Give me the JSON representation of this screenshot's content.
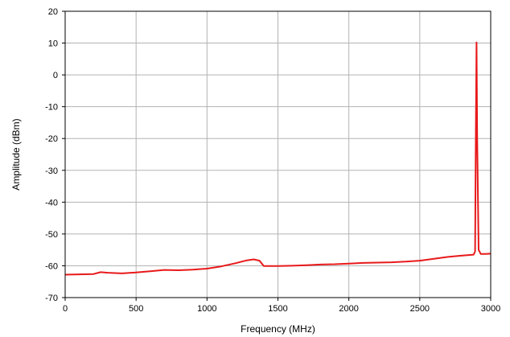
{
  "chart_data": {
    "type": "line",
    "title": "",
    "xlabel": "Frequency (MHz)",
    "ylabel": "Amplitude (dBm)",
    "xlim": [
      0,
      3000
    ],
    "ylim": [
      -70,
      20
    ],
    "xticks": [
      0,
      500,
      1000,
      1500,
      2000,
      2500,
      3000
    ],
    "yticks": [
      -70,
      -60,
      -50,
      -40,
      -30,
      -20,
      -10,
      0,
      10,
      20
    ],
    "grid": true,
    "legend": "none",
    "line_color": "#e8191a",
    "series": [
      {
        "x": [
          0,
          100,
          200,
          250,
          300,
          400,
          500,
          600,
          700,
          800,
          900,
          1000,
          1100,
          1200,
          1280,
          1330,
          1370,
          1390,
          1400,
          1500,
          1600,
          1700,
          1800,
          1900,
          2000,
          2100,
          2200,
          2300,
          2400,
          2500,
          2600,
          2700,
          2800,
          2880,
          2890,
          2895,
          2900,
          2905,
          2915,
          2930,
          2960,
          3000
        ],
        "y": [
          -62.8,
          -62.7,
          -62.6,
          -62.0,
          -62.2,
          -62.4,
          -62.1,
          -61.7,
          -61.3,
          -61.4,
          -61.2,
          -60.9,
          -60.2,
          -59.2,
          -58.3,
          -58.0,
          -58.4,
          -59.5,
          -60.1,
          -60.1,
          -60.0,
          -59.8,
          -59.6,
          -59.5,
          -59.3,
          -59.1,
          -59.0,
          -58.9,
          -58.7,
          -58.4,
          -57.8,
          -57.2,
          -56.8,
          -56.5,
          -55.5,
          -20.0,
          10.2,
          -20.0,
          -55.0,
          -56.3,
          -56.3,
          -56.2
        ]
      }
    ]
  }
}
